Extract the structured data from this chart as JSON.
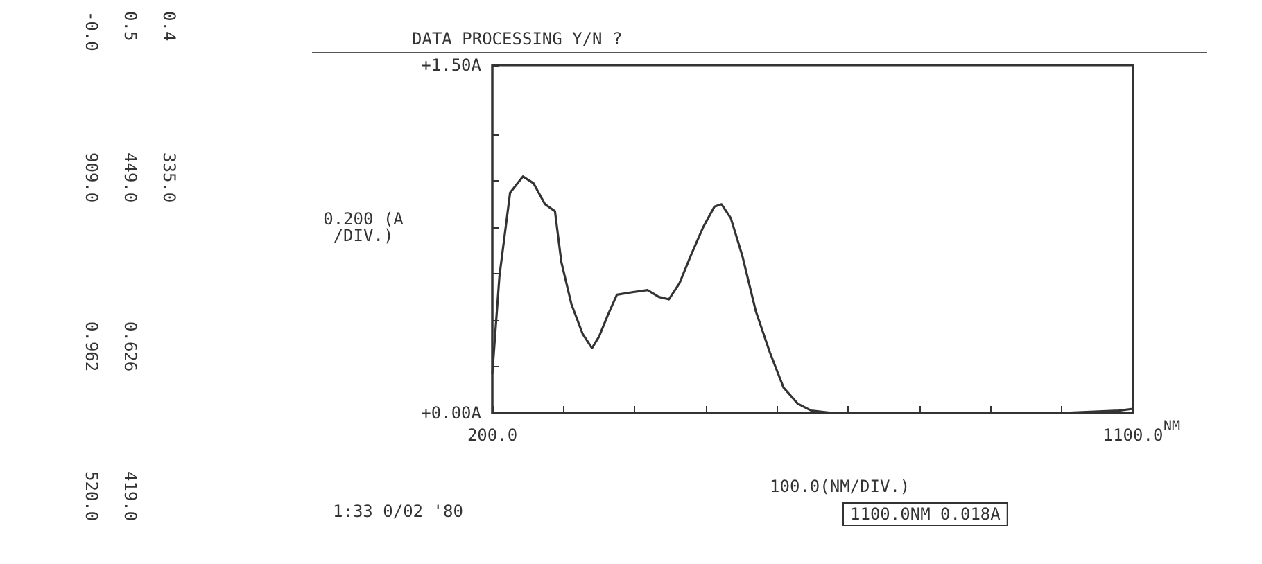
{
  "chart_data": {
    "type": "line",
    "title": "DATA PROCESSING Y/N ?",
    "xlabel": "NM",
    "ylabel": "0.200 (A/DIV.)",
    "x": [
      200,
      210,
      225,
      243,
      258,
      274,
      288,
      297,
      311,
      327,
      340,
      350,
      362,
      375,
      395,
      418,
      434,
      448,
      463,
      479,
      496,
      512,
      522,
      535,
      551,
      570,
      590,
      609,
      629,
      648,
      678,
      800,
      900,
      1000,
      1080,
      1100
    ],
    "series": [
      {
        "color": "#333333",
        "values": [
          0.17,
          0.59,
          0.95,
          1.02,
          0.99,
          0.9,
          0.87,
          0.65,
          0.47,
          0.34,
          0.28,
          0.33,
          0.42,
          0.51,
          0.52,
          0.53,
          0.5,
          0.49,
          0.56,
          0.68,
          0.8,
          0.89,
          0.9,
          0.84,
          0.68,
          0.44,
          0.26,
          0.11,
          0.04,
          0.01,
          0.0,
          0.0,
          0.0,
          0.0,
          0.01,
          0.018
        ]
      }
    ],
    "xlim": [
      200,
      1100
    ],
    "xticks": [
      {
        "value": 200,
        "label": "200.0"
      },
      {
        "value": 300,
        "label": null
      },
      {
        "value": 400,
        "label": null
      },
      {
        "value": 500,
        "label": null
      },
      {
        "value": 600,
        "label": null
      },
      {
        "value": 700,
        "label": null
      },
      {
        "value": 800,
        "label": null
      },
      {
        "value": 900,
        "label": null
      },
      {
        "value": 1000,
        "label": null
      },
      {
        "value": 1100,
        "label": "1100.0"
      }
    ],
    "ylim": [
      0,
      1.5
    ],
    "yticks": [
      {
        "value": 0,
        "label": "+0.00A"
      },
      {
        "value": 0.2,
        "label": null
      },
      {
        "value": 0.4,
        "label": null
      },
      {
        "value": 0.6,
        "label": null
      },
      {
        "value": 0.8,
        "label": null
      },
      {
        "value": 1.0,
        "label": null
      },
      {
        "value": 1.2,
        "label": null
      },
      {
        "value": 1.5,
        "label": "+1.50A"
      }
    ],
    "grid": false,
    "marker": "none",
    "line_style": "solid",
    "annotations": [
      "1:33 0/02 '80",
      "1100.0NM 0.018A",
      "100.0(NM/DIV.)",
      "-0.0",
      "0.5",
      "0.4",
      "909.0",
      "449.0",
      "335.0",
      "0.962",
      "0.626",
      "520.0",
      "419.0"
    ]
  }
}
